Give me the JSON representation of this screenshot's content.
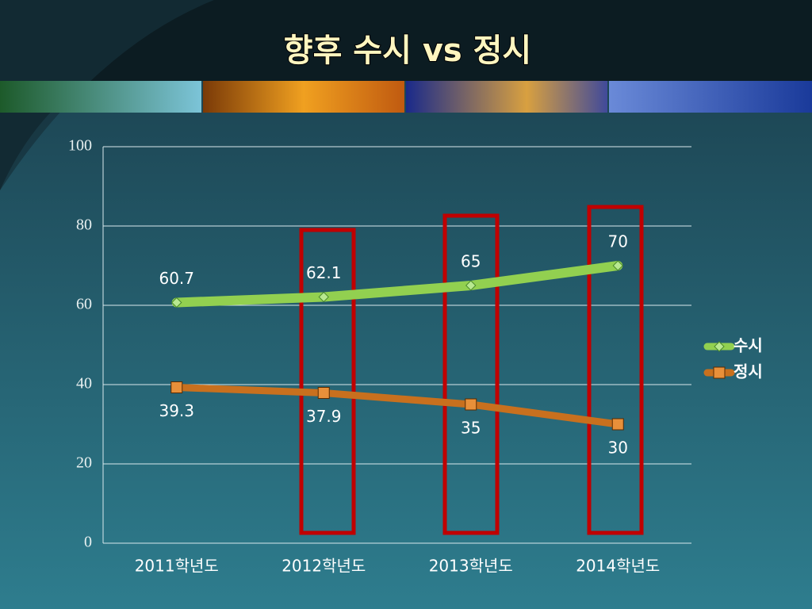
{
  "chart_data": {
    "type": "line",
    "title": "향후 수시 vs 정시",
    "categories": [
      "2011학년도",
      "2012학년도",
      "2013학년도",
      "2014학년도"
    ],
    "series": [
      {
        "name": "수시",
        "color": "#92d050",
        "values": [
          60.7,
          62.1,
          65,
          70
        ]
      },
      {
        "name": "정시",
        "color": "#c8701e",
        "values": [
          39.3,
          37.9,
          35,
          30
        ]
      }
    ],
    "ylim": [
      0,
      100
    ],
    "yticks": [
      0,
      20,
      40,
      60,
      80,
      100
    ],
    "grid": true,
    "legend": "right"
  }
}
